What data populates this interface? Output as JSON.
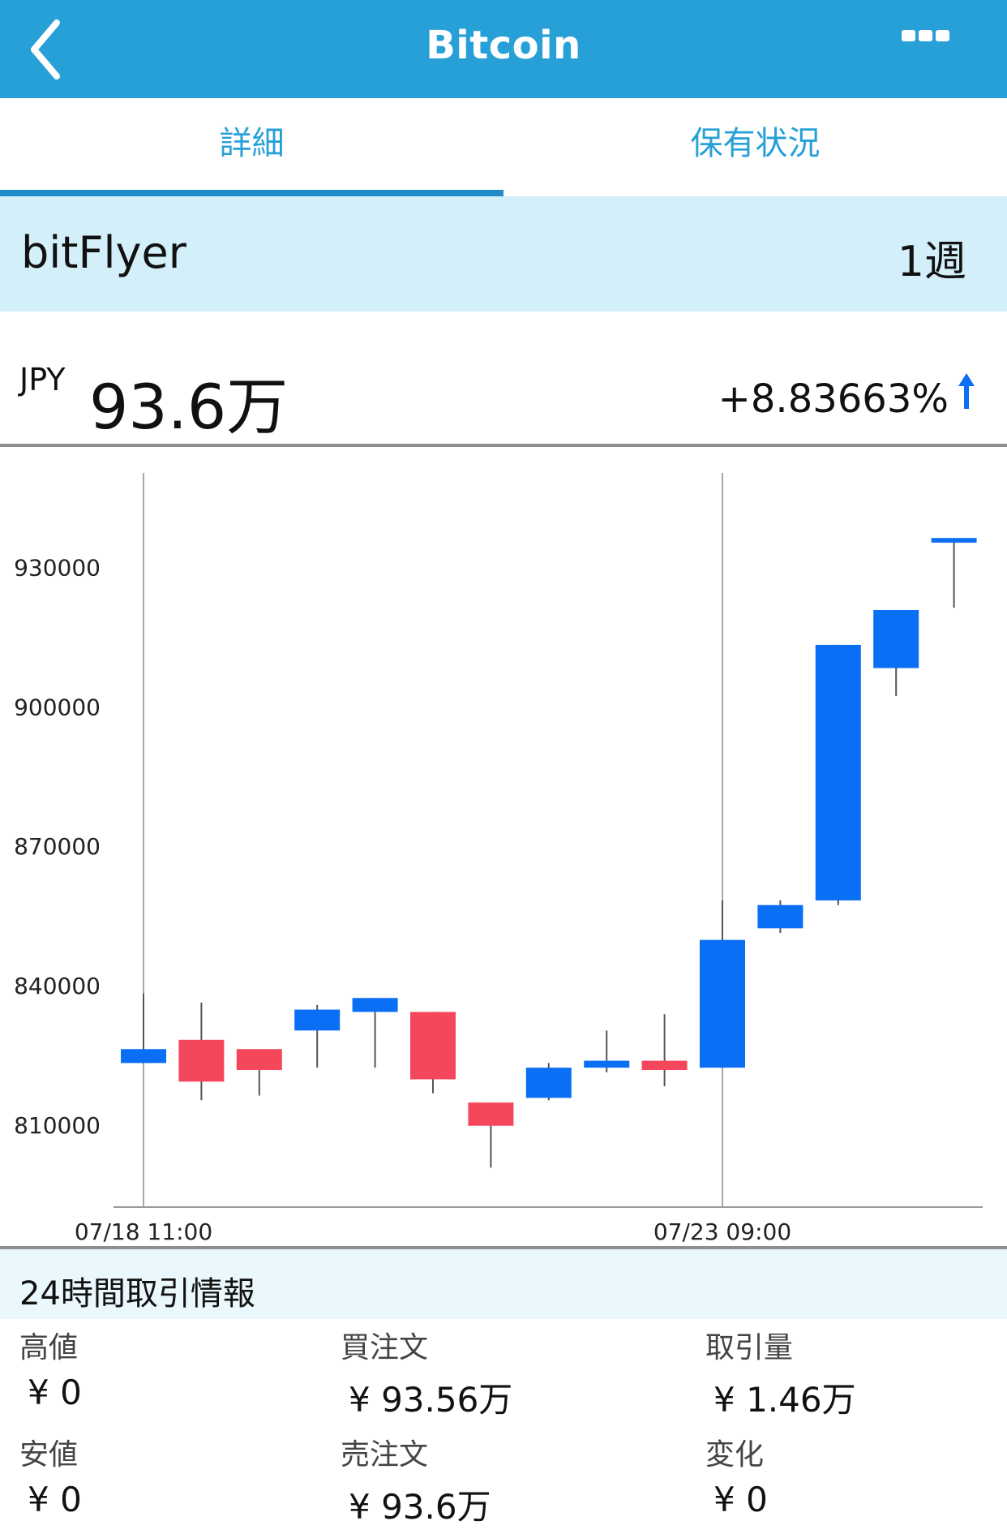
{
  "header": {
    "title": "Bitcoin",
    "back_icon": "chevron-left-icon",
    "more_icon": "more-dots-icon"
  },
  "tabs": [
    {
      "label": "詳細",
      "active": true
    },
    {
      "label": "保有状況",
      "active": false
    }
  ],
  "exchange": {
    "name": "bitFlyer",
    "period": "1週"
  },
  "price": {
    "currency": "JPY",
    "value": "93.6万",
    "change": "+8.83663%",
    "direction_icon": "arrow-up-icon"
  },
  "colors": {
    "accent": "#27a0d8",
    "up": "#0a6ff5",
    "down": "#f5475c"
  },
  "chart_data": {
    "type": "candlestick",
    "y_ticks": [
      "930000",
      "900000",
      "870000",
      "840000",
      "810000"
    ],
    "ylim": [
      792000,
      950000
    ],
    "x_ticks": [
      {
        "label": "07/18 11:00",
        "index": 0
      },
      {
        "label": "07/23 09:00",
        "index": 10
      }
    ],
    "candles": [
      {
        "open": 823000,
        "close": 826000,
        "high": 838000,
        "low": 823000
      },
      {
        "open": 828000,
        "close": 819000,
        "high": 836000,
        "low": 815000
      },
      {
        "open": 826000,
        "close": 821500,
        "high": 826000,
        "low": 816000
      },
      {
        "open": 830000,
        "close": 834500,
        "high": 835500,
        "low": 822000
      },
      {
        "open": 834000,
        "close": 837000,
        "high": 837000,
        "low": 822000
      },
      {
        "open": 834000,
        "close": 819500,
        "high": 834000,
        "low": 816500
      },
      {
        "open": 814500,
        "close": 809500,
        "high": 814500,
        "low": 800500
      },
      {
        "open": 815500,
        "close": 822000,
        "high": 823000,
        "low": 815000
      },
      {
        "open": 822000,
        "close": 823500,
        "high": 830000,
        "low": 821000
      },
      {
        "open": 823500,
        "close": 821500,
        "high": 833500,
        "low": 818000
      },
      {
        "open": 822000,
        "close": 849500,
        "high": 858000,
        "low": 822000
      },
      {
        "open": 852000,
        "close": 857000,
        "high": 858000,
        "low": 851000
      },
      {
        "open": 858000,
        "close": 913000,
        "high": 913000,
        "low": 857000
      },
      {
        "open": 908000,
        "close": 920500,
        "high": 920500,
        "low": 902000
      },
      {
        "open": 935000,
        "close": 936000,
        "high": 936000,
        "low": 921000
      }
    ]
  },
  "trade_info": {
    "title": "24時間取引情報",
    "cells": [
      {
        "label": "高値",
        "value": "¥ 0"
      },
      {
        "label": "買注文",
        "value": "¥ 93.56万"
      },
      {
        "label": "取引量",
        "value": "¥ 1.46万"
      },
      {
        "label": "安値",
        "value": "¥ 0"
      },
      {
        "label": "売注文",
        "value": "¥ 93.6万"
      },
      {
        "label": "変化",
        "value": "¥ 0"
      }
    ]
  }
}
